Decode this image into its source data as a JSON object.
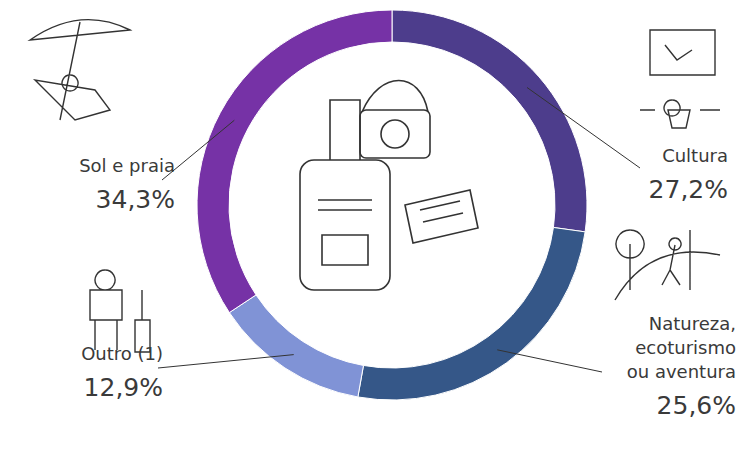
{
  "chart_data": {
    "type": "donut",
    "categories": [
      "Cultura",
      "Natureza, ecoturismo ou aventura",
      "Outro (1)",
      "Sol e praia"
    ],
    "values": [
      27.2,
      25.6,
      12.9,
      34.3
    ],
    "value_labels": [
      "27,2%",
      "25,6%",
      "12,9%",
      "34,3%"
    ],
    "colors": [
      "#4d3d8c",
      "#355788",
      "#8093d6",
      "#7632a6"
    ],
    "data_labels": true
  }
}
